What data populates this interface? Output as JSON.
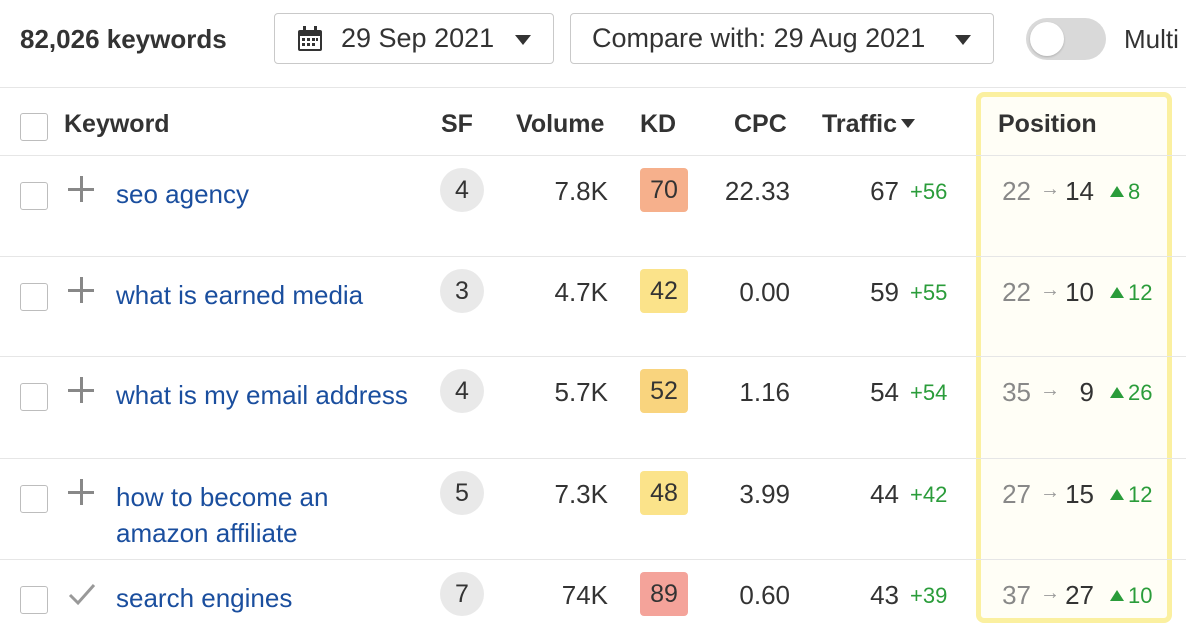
{
  "toolbar": {
    "keyword_count": "82,026 keywords",
    "date_label": "29 Sep 2021",
    "compare_label": "Compare with: 29 Aug 2021",
    "toggle_label": "Multi",
    "toggle_on": false
  },
  "columns": {
    "keyword": "Keyword",
    "sf": "SF",
    "volume": "Volume",
    "kd": "KD",
    "cpc": "CPC",
    "traffic": "Traffic",
    "position": "Position"
  },
  "rows": [
    {
      "keyword": "seo agency",
      "action": "plus",
      "sf": "4",
      "volume": "7.8K",
      "kd": "70",
      "kd_color": "#f6b08c",
      "cpc": "22.33",
      "traffic": "67",
      "traffic_delta": "+56",
      "pos_old": "22",
      "pos_new": "14",
      "pos_delta": "8"
    },
    {
      "keyword": "what is earned media",
      "action": "plus",
      "sf": "3",
      "volume": "4.7K",
      "kd": "42",
      "kd_color": "#fbe38a",
      "cpc": "0.00",
      "traffic": "59",
      "traffic_delta": "+55",
      "pos_old": "22",
      "pos_new": "10",
      "pos_delta": "12"
    },
    {
      "keyword": "what is my email address",
      "action": "plus",
      "sf": "4",
      "volume": "5.7K",
      "kd": "52",
      "kd_color": "#f9d47e",
      "cpc": "1.16",
      "traffic": "54",
      "traffic_delta": "+54",
      "pos_old": "35",
      "pos_new": "9",
      "pos_delta": "26"
    },
    {
      "keyword": "how to become an amazon affiliate",
      "action": "plus",
      "sf": "5",
      "volume": "7.3K",
      "kd": "48",
      "kd_color": "#fbe38a",
      "cpc": "3.99",
      "traffic": "44",
      "traffic_delta": "+42",
      "pos_old": "27",
      "pos_new": "15",
      "pos_delta": "12"
    },
    {
      "keyword": "search engines",
      "action": "check",
      "sf": "7",
      "volume": "74K",
      "kd": "89",
      "kd_color": "#f4a39a",
      "cpc": "0.60",
      "traffic": "43",
      "traffic_delta": "+39",
      "pos_old": "37",
      "pos_new": "27",
      "pos_delta": "10"
    }
  ],
  "colors": {
    "link": "#1a4e9e",
    "positive": "#2a9c3a",
    "highlight": "#fbf0a0"
  }
}
